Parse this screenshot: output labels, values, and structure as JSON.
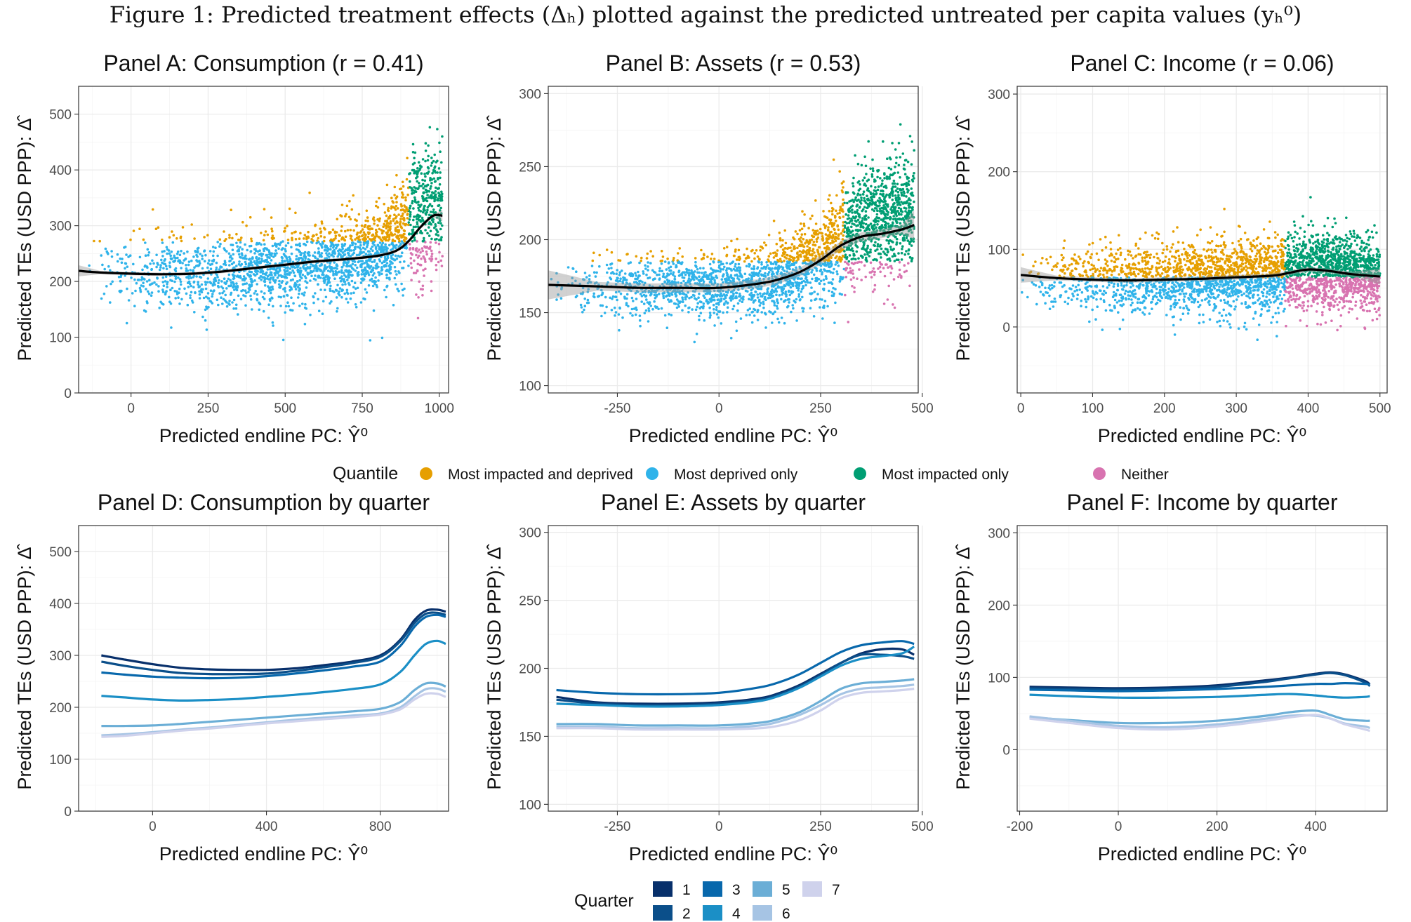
{
  "figure": {
    "caption": "Figure 1: Predicted treatment effects (Δₕ) plotted against the predicted untreated per capita values (yₕ⁰)"
  },
  "axis_titles": {
    "x": "Predicted endline PC: Ŷ⁰",
    "y": "Predicted TEs (USD PPP): Δ̂"
  },
  "legends": {
    "quantile": {
      "title": "Quantile",
      "items": [
        {
          "label": "Most impacted and deprived",
          "color": "#E69F00"
        },
        {
          "label": "Most deprived only",
          "color": "#2FB3EA"
        },
        {
          "label": "Most impacted only",
          "color": "#009E73"
        },
        {
          "label": "Neither",
          "color": "#D873B0"
        }
      ]
    },
    "quarter": {
      "title": "Quarter",
      "items": [
        {
          "label": "1",
          "color": "#08306B"
        },
        {
          "label": "2",
          "color": "#0B4F8A"
        },
        {
          "label": "3",
          "color": "#0868AC"
        },
        {
          "label": "4",
          "color": "#1B8FC6"
        },
        {
          "label": "5",
          "color": "#6BAED6"
        },
        {
          "label": "6",
          "color": "#A6C4E4"
        },
        {
          "label": "7",
          "color": "#CFD2EC"
        }
      ]
    }
  },
  "chart_data": [
    {
      "id": "A",
      "type": "scatter",
      "title": "Panel A: Consumption (r = 0.41)",
      "xlim": [
        -170,
        1030
      ],
      "ylim": [
        0,
        550
      ],
      "xticks": [
        0,
        250,
        500,
        750,
        1000
      ],
      "yticks": [
        0,
        100,
        200,
        300,
        400,
        500
      ],
      "xsplit": 900,
      "ysplit": 272,
      "smooth": {
        "x": [
          -170,
          -100,
          0,
          100,
          200,
          300,
          400,
          500,
          600,
          700,
          800,
          860,
          900,
          940,
          980,
          1010
        ],
        "y": [
          219,
          216,
          214,
          213,
          214,
          218,
          224,
          230,
          236,
          240,
          246,
          255,
          272,
          298,
          318,
          318
        ]
      },
      "cloud": {
        "x": [
          -150,
          0,
          200,
          400,
          600,
          700,
          800,
          850,
          900,
          950,
          1010
        ],
        "center": [
          220,
          215,
          214,
          222,
          232,
          240,
          255,
          275,
          300,
          330,
          345
        ],
        "spread": [
          55,
          60,
          62,
          62,
          62,
          62,
          70,
          80,
          95,
          110,
          100
        ],
        "n": 2400
      }
    },
    {
      "id": "B",
      "type": "scatter",
      "title": "Panel B: Assets (r = 0.53)",
      "xlim": [
        -420,
        490
      ],
      "ylim": [
        95,
        305
      ],
      "xticks": [
        -250,
        0,
        250,
        500
      ],
      "yticks": [
        100,
        150,
        200,
        250,
        300
      ],
      "xsplit": 308,
      "ysplit": 185,
      "smooth": {
        "x": [
          -420,
          -300,
          -200,
          -100,
          0,
          100,
          150,
          200,
          250,
          300,
          350,
          400,
          450,
          480
        ],
        "y": [
          169,
          168,
          167,
          167,
          167,
          170,
          173,
          178,
          186,
          196,
          202,
          204,
          207,
          210
        ]
      },
      "cloud": {
        "x": [
          -420,
          -300,
          -150,
          0,
          100,
          200,
          250,
          308,
          350,
          420,
          480
        ],
        "center": [
          168,
          167,
          167,
          168,
          171,
          180,
          188,
          200,
          210,
          215,
          218
        ],
        "spread": [
          18,
          20,
          20,
          20,
          22,
          24,
          28,
          32,
          34,
          35,
          35
        ],
        "n": 2700
      }
    },
    {
      "id": "C",
      "type": "scatter",
      "title": "Panel C: Income (r = 0.06)",
      "xlim": [
        -5,
        510
      ],
      "ylim": [
        -85,
        310
      ],
      "xticks": [
        0,
        100,
        200,
        300,
        400,
        500
      ],
      "yticks": [
        0,
        100,
        200,
        300
      ],
      "xsplit": 368,
      "ysplit": 64,
      "smooth": {
        "x": [
          0,
          50,
          100,
          150,
          200,
          250,
          300,
          350,
          370,
          400,
          430,
          460,
          500
        ],
        "y": [
          67,
          63,
          61,
          60,
          61,
          62,
          64,
          66,
          69,
          74,
          72,
          68,
          65
        ]
      },
      "cloud": {
        "x": [
          0,
          100,
          200,
          300,
          368,
          400,
          450,
          500
        ],
        "center": [
          65,
          62,
          62,
          66,
          70,
          74,
          70,
          66
        ],
        "spread": [
          30,
          38,
          40,
          42,
          45,
          45,
          44,
          42
        ],
        "n": 3200
      }
    },
    {
      "id": "D",
      "type": "line",
      "title": "Panel D: Consumption by quarter",
      "xlim": [
        -260,
        1040
      ],
      "ylim": [
        0,
        550
      ],
      "xticks": [
        0,
        400,
        800
      ],
      "yticks": [
        0,
        100,
        200,
        300,
        400,
        500
      ],
      "x": [
        -180,
        -100,
        0,
        100,
        200,
        300,
        400,
        500,
        600,
        700,
        800,
        870,
        920,
        960,
        1000,
        1030
      ],
      "series": [
        {
          "name": "1",
          "values": [
            300,
            292,
            283,
            276,
            273,
            272,
            272,
            275,
            281,
            288,
            300,
            330,
            368,
            386,
            388,
            384
          ]
        },
        {
          "name": "2",
          "values": [
            288,
            280,
            272,
            266,
            264,
            264,
            265,
            270,
            277,
            285,
            297,
            327,
            362,
            380,
            382,
            378
          ]
        },
        {
          "name": "3",
          "values": [
            267,
            263,
            259,
            257,
            256,
            257,
            260,
            265,
            271,
            278,
            288,
            318,
            355,
            374,
            378,
            374
          ]
        },
        {
          "name": "4",
          "values": [
            222,
            219,
            215,
            213,
            214,
            216,
            220,
            224,
            229,
            235,
            244,
            268,
            300,
            322,
            328,
            322
          ]
        },
        {
          "name": "5",
          "values": [
            164,
            164,
            165,
            168,
            172,
            176,
            180,
            184,
            188,
            192,
            197,
            210,
            233,
            246,
            246,
            240
          ]
        },
        {
          "name": "6",
          "values": [
            146,
            148,
            152,
            157,
            161,
            166,
            171,
            176,
            180,
            184,
            188,
            200,
            221,
            235,
            236,
            230
          ]
        },
        {
          "name": "7",
          "values": [
            143,
            145,
            150,
            155,
            159,
            164,
            169,
            173,
            177,
            181,
            186,
            196,
            215,
            226,
            226,
            220
          ]
        }
      ]
    },
    {
      "id": "E",
      "type": "line",
      "title": "Panel E: Assets by quarter",
      "xlim": [
        -420,
        490
      ],
      "ylim": [
        95,
        305
      ],
      "xticks": [
        -250,
        0,
        250,
        500
      ],
      "yticks": [
        100,
        150,
        200,
        250,
        300
      ],
      "x": [
        -400,
        -300,
        -200,
        -100,
        0,
        100,
        150,
        200,
        250,
        300,
        350,
        400,
        450,
        480
      ],
      "series": [
        {
          "name": "1",
          "values": [
            179,
            175,
            174,
            174,
            175,
            178,
            182,
            188,
            196,
            204,
            211,
            214,
            214,
            210
          ]
        },
        {
          "name": "2",
          "values": [
            177,
            174,
            173,
            173,
            174,
            177,
            181,
            187,
            195,
            204,
            210,
            210,
            209,
            207
          ]
        },
        {
          "name": "3",
          "values": [
            184,
            182,
            181,
            181,
            182,
            186,
            190,
            196,
            204,
            212,
            217,
            219,
            220,
            218
          ]
        },
        {
          "name": "4",
          "values": [
            174,
            173,
            172,
            172,
            173,
            176,
            180,
            186,
            194,
            202,
            207,
            209,
            211,
            216
          ]
        },
        {
          "name": "5",
          "values": [
            159,
            159,
            158,
            158,
            158,
            160,
            163,
            168,
            176,
            185,
            189,
            190,
            191,
            192
          ]
        },
        {
          "name": "6",
          "values": [
            157,
            157,
            156,
            156,
            156,
            158,
            161,
            166,
            173,
            181,
            185,
            186,
            187,
            188
          ]
        },
        {
          "name": "7",
          "values": [
            156,
            156,
            155,
            155,
            155,
            156,
            158,
            162,
            169,
            178,
            182,
            183,
            184,
            185
          ]
        }
      ]
    },
    {
      "id": "F",
      "type": "line",
      "title": "Panel F: Income by quarter",
      "xlim": [
        -205,
        545
      ],
      "ylim": [
        -85,
        310
      ],
      "xticks": [
        -200,
        0,
        200,
        400
      ],
      "yticks": [
        0,
        100,
        200,
        300
      ],
      "x": [
        -180,
        -100,
        0,
        100,
        200,
        300,
        350,
        400,
        430,
        460,
        500,
        510
      ],
      "series": [
        {
          "name": "1",
          "values": [
            87,
            86,
            85,
            86,
            89,
            96,
            100,
            105,
            107,
            104,
            95,
            90
          ]
        },
        {
          "name": "2",
          "values": [
            85,
            84,
            83,
            84,
            87,
            94,
            99,
            104,
            106,
            103,
            93,
            88
          ]
        },
        {
          "name": "3",
          "values": [
            83,
            82,
            81,
            82,
            84,
            87,
            89,
            91,
            91,
            92,
            91,
            90
          ]
        },
        {
          "name": "4",
          "values": [
            76,
            74,
            72,
            72,
            73,
            76,
            77,
            75,
            73,
            72,
            73,
            74
          ]
        },
        {
          "name": "5",
          "values": [
            45,
            41,
            37,
            37,
            40,
            47,
            52,
            54,
            48,
            42,
            40,
            40
          ]
        },
        {
          "name": "6",
          "values": [
            46,
            40,
            33,
            31,
            35,
            43,
            47,
            47,
            43,
            36,
            32,
            30
          ]
        },
        {
          "name": "7",
          "values": [
            43,
            37,
            30,
            28,
            32,
            40,
            45,
            48,
            43,
            35,
            28,
            26
          ]
        }
      ]
    }
  ]
}
